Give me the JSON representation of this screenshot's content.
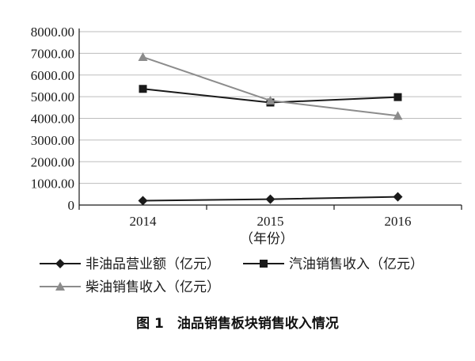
{
  "chart_data": {
    "type": "line",
    "categories": [
      "2014",
      "2015",
      "2016"
    ],
    "xlabel": "（年份）",
    "ylabel": "",
    "ylim": [
      0,
      8000
    ],
    "yticks": [
      "0",
      "1000.00",
      "2000.00",
      "3000.00",
      "4000.00",
      "5000.00",
      "6000.00",
      "7000.00",
      "8000.00"
    ],
    "series": [
      {
        "name": "非油品营业额（亿元）",
        "values": [
          200,
          270,
          380
        ],
        "color": "#1a1a1a",
        "marker": "diamond"
      },
      {
        "name": "汽油销售收入（亿元）",
        "values": [
          5360,
          4730,
          4980
        ],
        "color": "#1a1a1a",
        "marker": "square"
      },
      {
        "name": "柴油销售收入（亿元）",
        "values": [
          6830,
          4820,
          4120
        ],
        "color": "#8c8c8c",
        "marker": "triangle"
      }
    ],
    "grid": true,
    "legend_position": "bottom",
    "caption": "图 1　油品销售板块销售收入情况"
  }
}
